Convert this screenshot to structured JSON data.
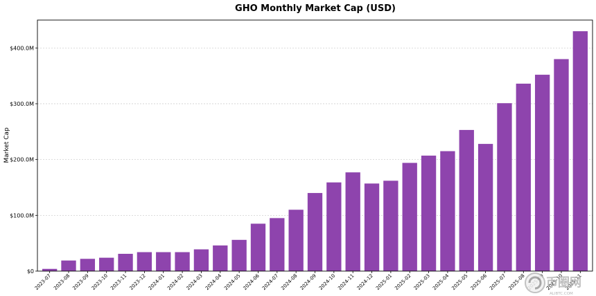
{
  "chart_data": {
    "type": "bar",
    "title": "GHO Monthly Market Cap (USD)",
    "xlabel": "",
    "ylabel": "Market Cap",
    "ylim": [
      0,
      450
    ],
    "yticks": [
      {
        "value": 0,
        "label": "$0"
      },
      {
        "value": 100,
        "label": "$100.0M"
      },
      {
        "value": 200,
        "label": "$200.0M"
      },
      {
        "value": 300,
        "label": "$300.0M"
      },
      {
        "value": 400,
        "label": "$400.0M"
      }
    ],
    "grid": "horizontal",
    "bar_color": "#8e44ad",
    "categories": [
      "2023-07",
      "2023-08",
      "2023-09",
      "2023-10",
      "2023-11",
      "2023-12",
      "2024-01",
      "2024-02",
      "2024-03",
      "2024-04",
      "2024-05",
      "2024-06",
      "2024-07",
      "2024-08",
      "2024-09",
      "2024-10",
      "2024-11",
      "2024-12",
      "2025-01",
      "2025-02",
      "2025-03",
      "2025-04",
      "2025-05",
      "2025-06",
      "2025-07",
      "2025-08",
      "2025-09",
      "2025-10",
      "2025-11"
    ],
    "values": [
      4,
      19,
      22,
      24,
      31,
      34,
      34,
      34,
      39,
      46,
      56,
      85,
      95,
      110,
      140,
      159,
      177,
      157,
      162,
      194,
      207,
      215,
      253,
      228,
      301,
      336,
      352,
      380,
      430
    ]
  },
  "watermark": {
    "text": "币圈网",
    "subtext": "ALIBTC.COM"
  }
}
